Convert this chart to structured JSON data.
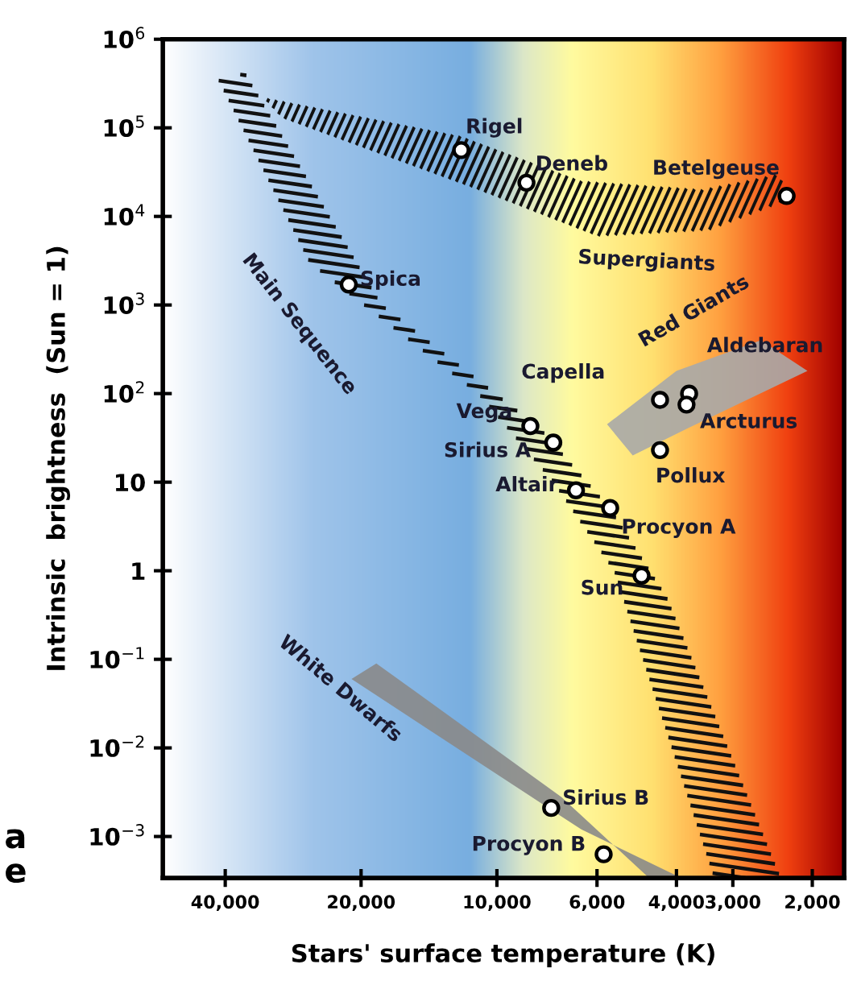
{
  "chart_data": {
    "type": "scatter",
    "xlabel": "Stars' surface temperature (K)",
    "ylabel": "Intrinsic  brightness  (Sun = 1)",
    "x": [
      12000,
      8600,
      2280,
      21300,
      4350,
      3750,
      3800,
      8430,
      7500,
      4350,
      6680,
      5610,
      4780,
      7580,
      5800
    ],
    "series": [
      {
        "color": "#000000",
        "values": [
          56000,
          24000,
          17000,
          1700,
          85,
          100,
          75,
          43,
          28,
          23,
          8.1,
          5.1,
          0.88,
          0.0021,
          0.00063
        ]
      }
    ],
    "marker": "circle",
    "log": "xy",
    "xlim": [
      55000,
      1700
    ],
    "xticks": [
      {
        "value": 40000,
        "label": "40,000"
      },
      {
        "value": 20000,
        "label": "20,000"
      },
      {
        "value": 10000,
        "label": "10,000"
      },
      {
        "value": 6000,
        "label": "6,000"
      },
      {
        "value": 4000,
        "label": "4,000"
      },
      {
        "value": 3000,
        "label": "3,000"
      },
      {
        "value": 2000,
        "label": "2,000"
      }
    ],
    "ylim": [
      0.00034,
      1000000
    ],
    "yticks": [
      {
        "value": 0.001,
        "label": "10$^{−3}$"
      },
      {
        "value": 0.01,
        "label": "10$^{−2}$"
      },
      {
        "value": 0.1,
        "label": "10$^{−1}$"
      },
      1,
      10,
      {
        "value": 100,
        "label": "10$^{2}$"
      },
      {
        "value": 1000,
        "label": "10$^{3}$"
      },
      {
        "value": 10000,
        "label": "10$^{4}$"
      },
      {
        "value": 100000,
        "label": "10$^{5}$"
      },
      {
        "value": 1000000,
        "label": "10$^{6}$"
      }
    ],
    "grid": false,
    "annotations": [
      {
        "text": "Rigel",
        "x": 12000,
        "y": 56000
      },
      {
        "text": "Deneb",
        "x": 8600,
        "y": 24000
      },
      {
        "text": "Betelgeuse",
        "x": 2280,
        "y": 17000
      },
      {
        "text": "Spica",
        "x": 21300,
        "y": 1700
      },
      {
        "text": "Capella",
        "x": 4350,
        "y": 85
      },
      {
        "text": "Aldebaran",
        "x": 3750,
        "y": 100
      },
      {
        "text": "Arcturus",
        "x": 3800,
        "y": 75
      },
      {
        "text": "Vega",
        "x": 8430,
        "y": 43
      },
      {
        "text": "Sirius A",
        "x": 7500,
        "y": 28
      },
      {
        "text": "Pollux",
        "x": 4350,
        "y": 23
      },
      {
        "text": "Altair",
        "x": 6680,
        "y": 8.1
      },
      {
        "text": "Procyon A",
        "x": 5610,
        "y": 5.1
      },
      {
        "text": "Sun",
        "x": 4780,
        "y": 0.88
      },
      {
        "text": "Sirius B",
        "x": 7580,
        "y": 0.0021
      },
      {
        "text": "Procyon B",
        "x": 5800,
        "y": 0.00063
      },
      "Main Sequence",
      "Supergiants",
      "Red Giants",
      "White Dwarfs",
      "a",
      "e"
    ]
  }
}
